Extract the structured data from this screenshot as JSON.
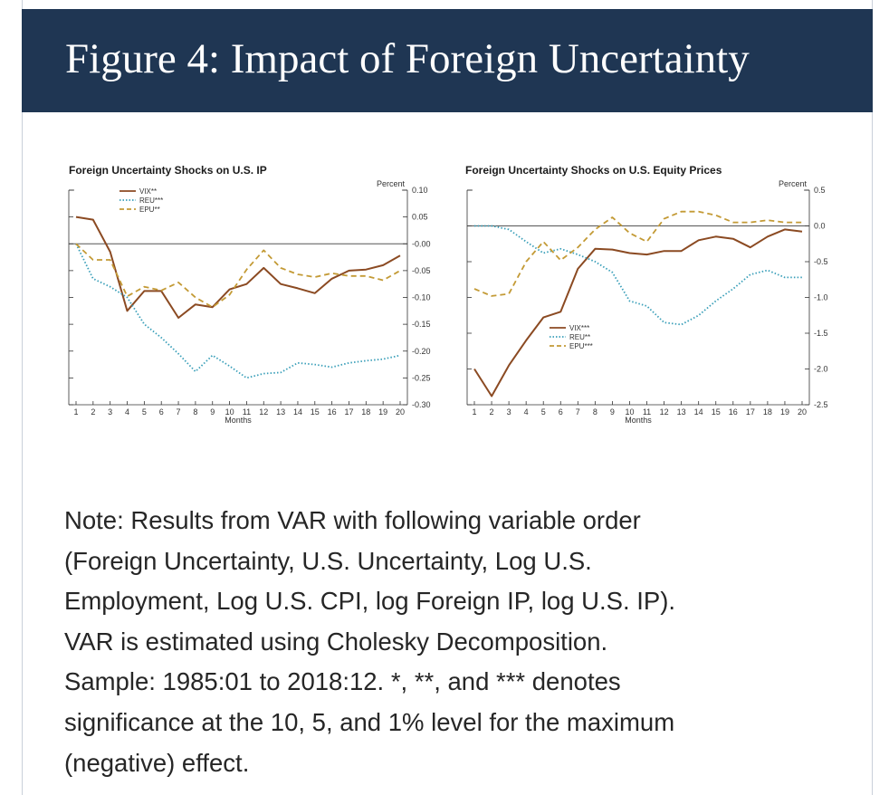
{
  "header": {
    "title": "Figure 4: Impact of Foreign Uncertainty"
  },
  "colors": {
    "header_bg": "#1f3653",
    "vix": "#8b4a22",
    "reu": "#3a9fb9",
    "epu": "#c39a35",
    "note_text": "#262626"
  },
  "chart_data": [
    {
      "type": "line",
      "title": "Foreign Uncertainty Shocks on U.S. IP",
      "xlabel": "Months",
      "ylabel": "Percent",
      "x": [
        1,
        2,
        3,
        4,
        5,
        6,
        7,
        8,
        9,
        10,
        11,
        12,
        13,
        14,
        15,
        16,
        17,
        18,
        19,
        20
      ],
      "ylim": [
        -0.3,
        0.1
      ],
      "yticks": [
        "0.10",
        "0.05",
        "-0.00",
        "-0.05",
        "-0.10",
        "-0.15",
        "-0.20",
        "-0.25",
        "-0.30"
      ],
      "yticks_values": [
        0.1,
        0.05,
        0.0,
        -0.05,
        -0.1,
        -0.15,
        -0.2,
        -0.25,
        -0.3
      ],
      "zero_line": true,
      "legend_position": "top-left",
      "series": [
        {
          "name": "VIX**",
          "style": "solid",
          "color": "#8b4a22",
          "values": [
            0.05,
            0.045,
            -0.015,
            -0.125,
            -0.088,
            -0.088,
            -0.138,
            -0.113,
            -0.118,
            -0.085,
            -0.075,
            -0.045,
            -0.075,
            -0.083,
            -0.092,
            -0.065,
            -0.05,
            -0.048,
            -0.04,
            -0.022
          ]
        },
        {
          "name": "REU***",
          "style": "dotted",
          "color": "#3a9fb9",
          "values": [
            0.0,
            -0.065,
            -0.08,
            -0.1,
            -0.15,
            -0.175,
            -0.205,
            -0.238,
            -0.208,
            -0.228,
            -0.25,
            -0.242,
            -0.24,
            -0.222,
            -0.225,
            -0.23,
            -0.222,
            -0.218,
            -0.215,
            -0.208
          ]
        },
        {
          "name": "EPU**",
          "style": "dashed",
          "color": "#c39a35",
          "values": [
            0.0,
            -0.03,
            -0.03,
            -0.098,
            -0.08,
            -0.087,
            -0.072,
            -0.1,
            -0.118,
            -0.095,
            -0.048,
            -0.012,
            -0.045,
            -0.057,
            -0.062,
            -0.055,
            -0.06,
            -0.06,
            -0.068,
            -0.05
          ]
        }
      ]
    },
    {
      "type": "line",
      "title": "Foreign Uncertainty Shocks on U.S. Equity Prices",
      "xlabel": "Months",
      "ylabel": "Percent",
      "x": [
        1,
        2,
        3,
        4,
        5,
        6,
        7,
        8,
        9,
        10,
        11,
        12,
        13,
        14,
        15,
        16,
        17,
        18,
        19,
        20
      ],
      "ylim": [
        -2.5,
        0.5
      ],
      "yticks": [
        "0.5",
        "0.0",
        "-0.5",
        "-1.0",
        "-1.5",
        "-2.0",
        "-2.5"
      ],
      "yticks_values": [
        0.5,
        0.0,
        -0.5,
        -1.0,
        -1.5,
        -2.0,
        -2.5
      ],
      "zero_line": true,
      "legend_position": "center",
      "series": [
        {
          "name": "VIX***",
          "style": "solid",
          "color": "#8b4a22",
          "values": [
            -2.0,
            -2.38,
            -1.95,
            -1.6,
            -1.28,
            -1.2,
            -0.6,
            -0.32,
            -0.33,
            -0.38,
            -0.4,
            -0.35,
            -0.35,
            -0.2,
            -0.15,
            -0.18,
            -0.3,
            -0.15,
            -0.05,
            -0.08
          ]
        },
        {
          "name": "REU**",
          "style": "dotted",
          "color": "#3a9fb9",
          "values": [
            0.0,
            0.0,
            -0.05,
            -0.22,
            -0.38,
            -0.32,
            -0.4,
            -0.5,
            -0.65,
            -1.05,
            -1.12,
            -1.35,
            -1.38,
            -1.25,
            -1.05,
            -0.88,
            -0.68,
            -0.62,
            -0.72,
            -0.72
          ]
        },
        {
          "name": "EPU***",
          "style": "dashed",
          "color": "#c39a35",
          "values": [
            -0.88,
            -0.98,
            -0.95,
            -0.5,
            -0.22,
            -0.48,
            -0.3,
            -0.05,
            0.12,
            -0.1,
            -0.22,
            0.1,
            0.2,
            0.2,
            0.15,
            0.05,
            0.05,
            0.08,
            0.05,
            0.05
          ]
        }
      ]
    }
  ],
  "note": {
    "lines": [
      "Note: Results from VAR with following variable order",
      "(Foreign Uncertainty, U.S. Uncertainty, Log U.S.",
      "Employment, Log U.S. CPI, log Foreign IP, log U.S. IP).",
      "VAR is estimated using Cholesky Decomposition.",
      "Sample: 1985:01 to 2018:12. *, **, and *** denotes",
      "significance at the 10, 5, and 1% level for the maximum",
      "(negative) effect."
    ]
  }
}
